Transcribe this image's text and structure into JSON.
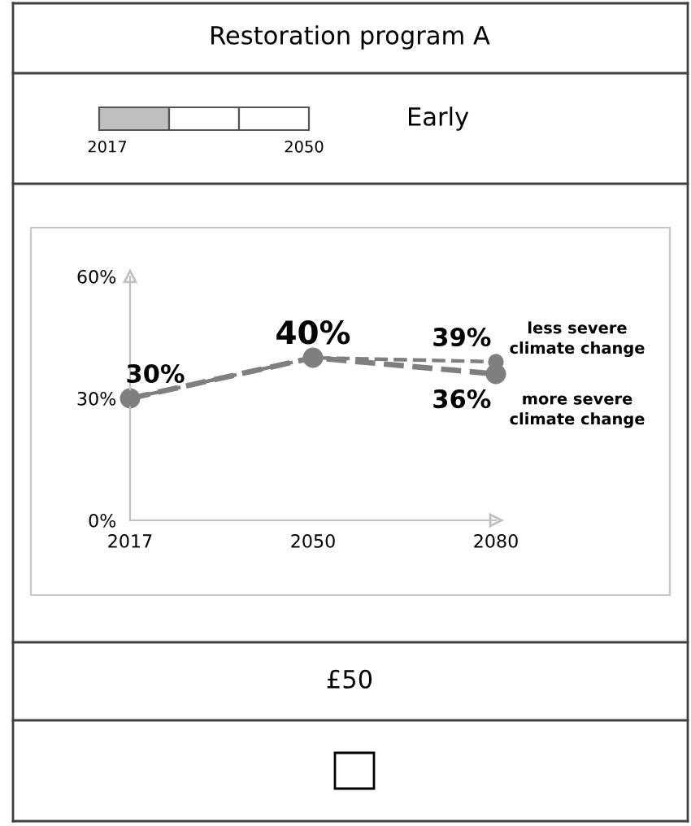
{
  "chart_data": {
    "type": "line",
    "title": "Restoration program A",
    "categories": [
      "2017",
      "2050",
      "2080"
    ],
    "series": [
      {
        "name": "less severe\nclimate change",
        "color": "#7f7f7f",
        "values": [
          30,
          40,
          39
        ],
        "value_labels": [
          "30%",
          "40%",
          "39%"
        ]
      },
      {
        "name": "more severe\nclimate change",
        "color": "#7f7f7f",
        "values": [
          30,
          40,
          36
        ],
        "value_labels": [
          null,
          null,
          "36%"
        ]
      }
    ],
    "ylim": [
      0,
      60
    ],
    "yticks": [
      {
        "value": 0,
        "label": "0%"
      },
      {
        "value": 30,
        "label": "30%"
      },
      {
        "value": 60,
        "label": "60%"
      }
    ],
    "marker": "circle",
    "line_style": "dashed",
    "grid": false,
    "legend": false,
    "annotations": [
      "2017",
      "2050",
      "Early",
      "£50"
    ]
  }
}
